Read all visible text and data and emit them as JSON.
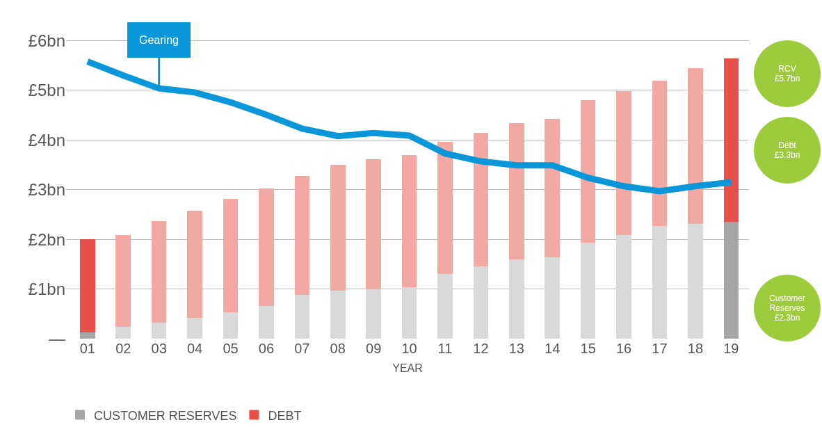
{
  "chart_data": {
    "type": "bar",
    "stacked": true,
    "xlabel": "YEAR",
    "categories": [
      "01",
      "02",
      "03",
      "04",
      "05",
      "06",
      "07",
      "08",
      "09",
      "10",
      "11",
      "12",
      "13",
      "14",
      "15",
      "16",
      "17",
      "18",
      "19"
    ],
    "series": [
      {
        "name": "CUSTOMER RESERVES",
        "color": "#a6a6a6",
        "colors": [
          "#a6a6a6",
          "#d9d9d9",
          "#d9d9d9",
          "#d9d9d9",
          "#d9d9d9",
          "#d9d9d9",
          "#d9d9d9",
          "#d9d9d9",
          "#d9d9d9",
          "#d9d9d9",
          "#d9d9d9",
          "#d9d9d9",
          "#d9d9d9",
          "#d9d9d9",
          "#d9d9d9",
          "#d9d9d9",
          "#d9d9d9",
          "#d9d9d9",
          "#a6a6a6"
        ],
        "values": [
          0.12,
          0.24,
          0.32,
          0.42,
          0.53,
          0.66,
          0.88,
          0.96,
          1.0,
          1.04,
          1.3,
          1.46,
          1.59,
          1.64,
          1.93,
          2.09,
          2.27,
          2.31,
          2.35
        ]
      },
      {
        "name": "DEBT",
        "color": "#e8514a",
        "colors": [
          "#e8514a",
          "#f2a9a3",
          "#f2a9a3",
          "#f2a9a3",
          "#f2a9a3",
          "#f2a9a3",
          "#f2a9a3",
          "#f2a9a3",
          "#f2a9a3",
          "#f2a9a3",
          "#f2a9a3",
          "#f2a9a3",
          "#f2a9a3",
          "#f2a9a3",
          "#f2a9a3",
          "#f2a9a3",
          "#f2a9a3",
          "#f2a9a3",
          "#e8514a"
        ],
        "values": [
          1.88,
          1.85,
          2.04,
          2.15,
          2.28,
          2.37,
          2.4,
          2.54,
          2.62,
          2.66,
          2.66,
          2.69,
          2.75,
          2.79,
          2.88,
          2.9,
          2.93,
          3.14,
          3.3
        ]
      },
      {
        "name": "Gearing",
        "type": "line",
        "color": "#0a97d9",
        "values": [
          5.58,
          5.3,
          5.04,
          4.96,
          4.76,
          4.51,
          4.23,
          4.08,
          4.14,
          4.09,
          3.73,
          3.57,
          3.49,
          3.49,
          3.24,
          3.07,
          2.97,
          3.07,
          3.15
        ]
      }
    ],
    "ylim": [
      0,
      6.4
    ],
    "yticks": [
      {
        "value": 0,
        "label": "—"
      },
      {
        "value": 1,
        "label": "£1bn"
      },
      {
        "value": 2,
        "label": "£2bn"
      },
      {
        "value": 3,
        "label": "£3bn"
      },
      {
        "value": 4,
        "label": "£4bn"
      },
      {
        "value": 5,
        "label": "£5bn"
      },
      {
        "value": 6,
        "label": "£6bn"
      }
    ],
    "grid": "y",
    "legend": "bottom left",
    "marker": "none",
    "annotations": [
      "RCV\n£5.7bn",
      "Debt\n£3.3bn",
      "Customer\nReserves\n£2.3bn"
    ]
  }
}
